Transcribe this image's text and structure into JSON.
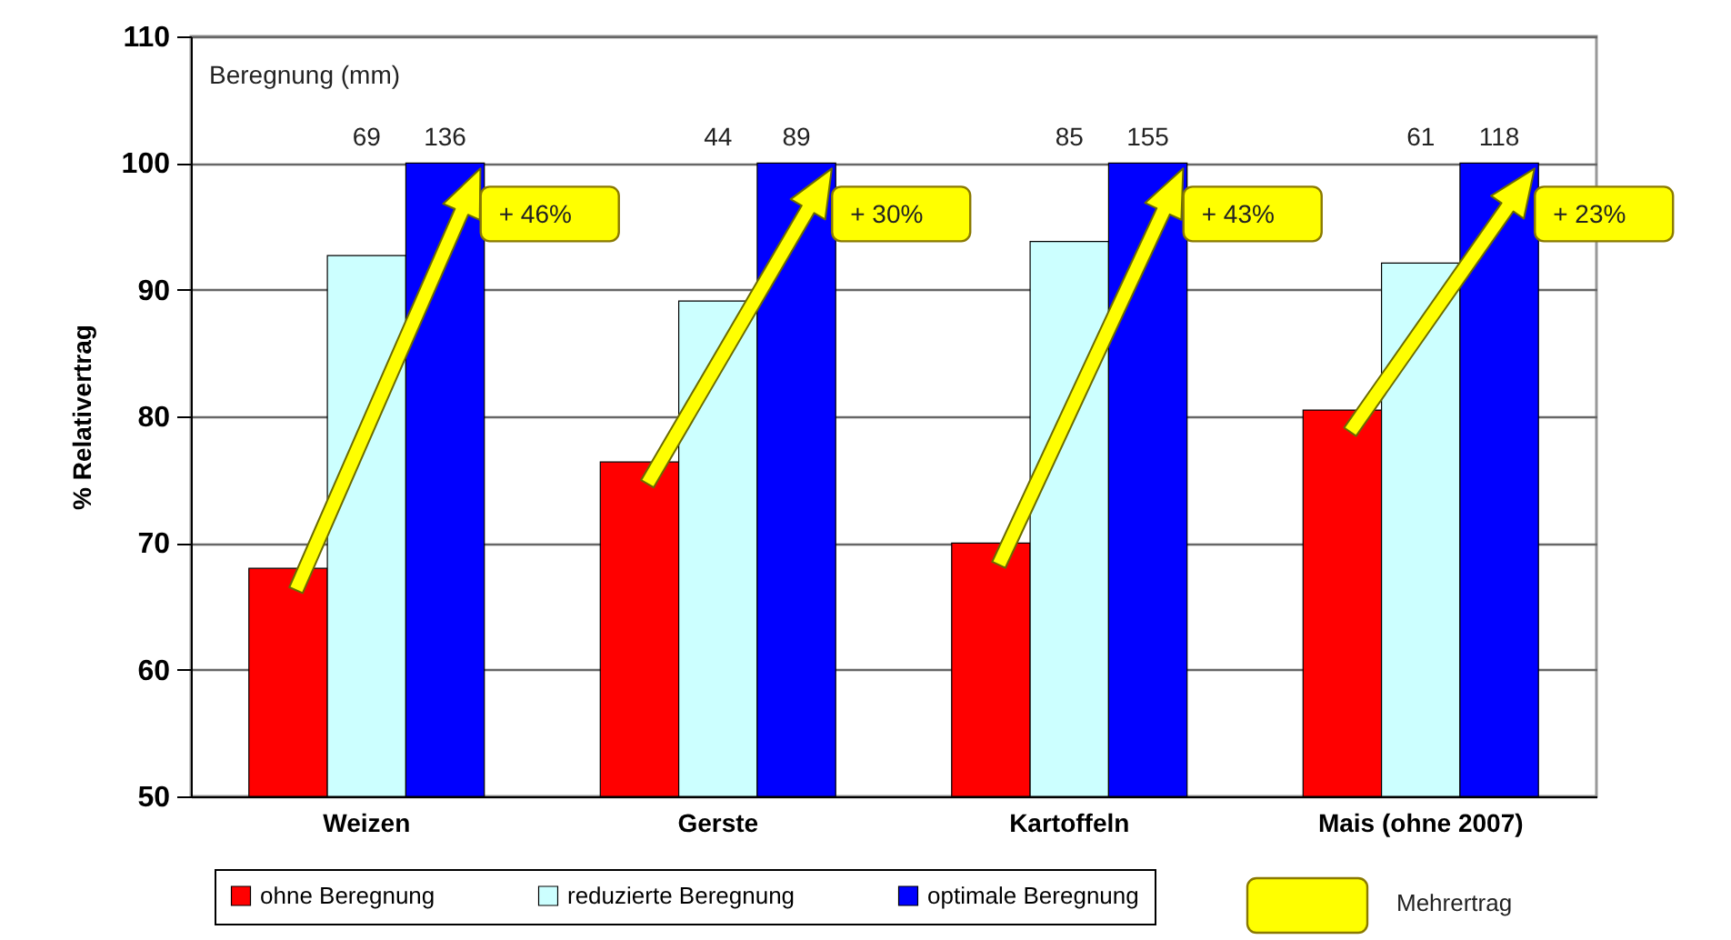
{
  "chart_data": {
    "type": "bar",
    "ylabel": "% Relativertrag",
    "categories": [
      "Weizen",
      "Gerste",
      "Kartoffeln",
      "Mais (ohne 2007)"
    ],
    "series": [
      {
        "name": "ohne Beregnung",
        "color": "#ff0000",
        "values": [
          68,
          76.4,
          70,
          80.5
        ]
      },
      {
        "name": "reduzierte Beregnung",
        "color": "#ccffff",
        "values": [
          92.7,
          89.1,
          93.8,
          92.1
        ]
      },
      {
        "name": "optimale Beregnung",
        "color": "#0000ff",
        "values": [
          100,
          100,
          100,
          100
        ]
      }
    ],
    "ylim": [
      50,
      110
    ],
    "yticks": [
      50,
      60,
      70,
      80,
      90,
      100,
      110
    ],
    "grid": "y",
    "legend": "bottom",
    "annotations": [
      "Beregnung (mm)",
      "69",
      "136",
      "44",
      "89",
      "85",
      "155",
      "61",
      "118",
      "+ 46%",
      "+ 30%",
      "+ 43%",
      "+ 23%",
      "Mehrertrag"
    ]
  }
}
